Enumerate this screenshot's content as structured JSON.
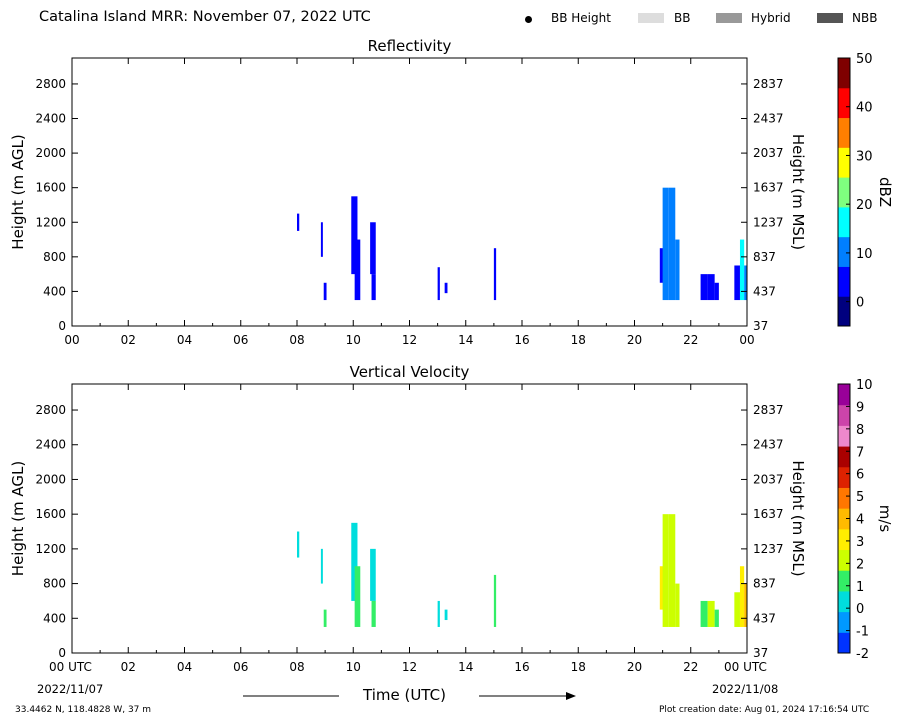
{
  "header": {
    "title": "Catalina Island MRR:  November 07, 2022 UTC",
    "legend": [
      {
        "label": "BB Height",
        "kind": "dot",
        "color": "#000000"
      },
      {
        "label": "BB",
        "kind": "swatch",
        "color": "#dddddd"
      },
      {
        "label": "Hybrid",
        "kind": "swatch",
        "color": "#999999"
      },
      {
        "label": "NBB",
        "kind": "swatch",
        "color": "#555555"
      }
    ]
  },
  "footer": {
    "location": "33.4462 N, 118.4828 W, 37 m",
    "creation": "Plot creation date: Aug 01, 2024 17:16:54 UTC",
    "xlabel": "Time (UTC)",
    "start_date": "2022/11/07",
    "end_date": "2022/11/08"
  },
  "chart_data": [
    {
      "type": "heatmap",
      "title": "Reflectivity",
      "ylabel": "Height (m AGL)",
      "ylabel_right": "Height (m MSL)",
      "xlim": [
        0,
        24
      ],
      "ylim": [
        0,
        3100
      ],
      "xticks": [
        "00",
        "02",
        "04",
        "06",
        "08",
        "10",
        "12",
        "14",
        "16",
        "18",
        "20",
        "22",
        "00"
      ],
      "yticks_left": [
        0,
        400,
        800,
        1200,
        1600,
        2000,
        2400,
        2800
      ],
      "yticks_right": [
        "37",
        "437",
        "837",
        "1237",
        "1637",
        "2037",
        "2437",
        "2837"
      ],
      "colorbar": {
        "label": "dBZ",
        "min": -5,
        "max": 50,
        "ticks": [
          0,
          10,
          20,
          30,
          40,
          50
        ],
        "colors": [
          "#00007f",
          "#0000ff",
          "#007fff",
          "#00ffff",
          "#7fff7f",
          "#ffff00",
          "#ff7f00",
          "#ff0000",
          "#7f0000"
        ]
      },
      "cells": [
        {
          "t0": 8.0,
          "t1": 8.08,
          "h0": 1100,
          "h1": 1300,
          "v": 2
        },
        {
          "t0": 8.85,
          "t1": 8.92,
          "h0": 800,
          "h1": 1200,
          "v": 2
        },
        {
          "t0": 8.95,
          "t1": 9.05,
          "h0": 300,
          "h1": 500,
          "v": 2
        },
        {
          "t0": 9.93,
          "t1": 10.15,
          "h0": 600,
          "h1": 1500,
          "v": 3
        },
        {
          "t0": 10.05,
          "t1": 10.25,
          "h0": 300,
          "h1": 1000,
          "v": 3
        },
        {
          "t0": 10.6,
          "t1": 10.8,
          "h0": 600,
          "h1": 1200,
          "v": 3
        },
        {
          "t0": 10.65,
          "t1": 10.8,
          "h0": 300,
          "h1": 600,
          "v": 3
        },
        {
          "t0": 13.0,
          "t1": 13.08,
          "h0": 300,
          "h1": 680,
          "v": 2
        },
        {
          "t0": 13.25,
          "t1": 13.35,
          "h0": 380,
          "h1": 500,
          "v": 2
        },
        {
          "t0": 15.0,
          "t1": 15.08,
          "h0": 300,
          "h1": 900,
          "v": 2
        },
        {
          "t0": 20.9,
          "t1": 21.05,
          "h0": 500,
          "h1": 900,
          "v": 6
        },
        {
          "t0": 21.0,
          "t1": 21.2,
          "h0": 300,
          "h1": 1600,
          "v": 9
        },
        {
          "t0": 21.2,
          "t1": 21.45,
          "h0": 300,
          "h1": 1600,
          "v": 10
        },
        {
          "t0": 21.45,
          "t1": 21.6,
          "h0": 300,
          "h1": 1000,
          "v": 11
        },
        {
          "t0": 22.35,
          "t1": 22.6,
          "h0": 300,
          "h1": 600,
          "v": 3
        },
        {
          "t0": 22.6,
          "t1": 22.85,
          "h0": 300,
          "h1": 600,
          "v": 4
        },
        {
          "t0": 22.85,
          "t1": 23.0,
          "h0": 300,
          "h1": 500,
          "v": 3
        },
        {
          "t0": 23.55,
          "t1": 23.75,
          "h0": 300,
          "h1": 700,
          "v": 4
        },
        {
          "t0": 23.75,
          "t1": 23.9,
          "h0": 300,
          "h1": 1000,
          "v": 14
        },
        {
          "t0": 23.9,
          "t1": 24.0,
          "h0": 300,
          "h1": 700,
          "v": 9
        }
      ]
    },
    {
      "type": "heatmap",
      "title": "Vertical Velocity",
      "ylabel": "Height (m AGL)",
      "ylabel_right": "Height (m MSL)",
      "xlim": [
        0,
        24
      ],
      "ylim": [
        0,
        3100
      ],
      "xticks": [
        "00 UTC",
        "02",
        "04",
        "06",
        "08",
        "10",
        "12",
        "14",
        "16",
        "18",
        "20",
        "22",
        "00 UTC"
      ],
      "yticks_left": [
        0,
        400,
        800,
        1200,
        1600,
        2000,
        2400,
        2800
      ],
      "yticks_right": [
        "37",
        "437",
        "837",
        "1237",
        "1637",
        "2037",
        "2437",
        "2837"
      ],
      "colorbar": {
        "label": "m/s",
        "min": -2,
        "max": 10,
        "ticks": [
          -2,
          -1,
          0,
          1,
          2,
          3,
          4,
          5,
          6,
          7,
          8,
          9,
          10
        ],
        "colors": [
          "#0033ff",
          "#0099ff",
          "#00dddd",
          "#33ee66",
          "#ccff00",
          "#ffee00",
          "#ffbb00",
          "#ff7700",
          "#dd2200",
          "#aa0000",
          "#ee88cc",
          "#cc44aa",
          "#990099"
        ]
      },
      "cells": [
        {
          "t0": 8.0,
          "t1": 8.08,
          "h0": 1100,
          "h1": 1400,
          "v": 0.5
        },
        {
          "t0": 8.85,
          "t1": 8.92,
          "h0": 800,
          "h1": 1200,
          "v": 0.5
        },
        {
          "t0": 8.95,
          "t1": 9.05,
          "h0": 300,
          "h1": 500,
          "v": 0.8
        },
        {
          "t0": 9.93,
          "t1": 10.15,
          "h0": 600,
          "h1": 1500,
          "v": 0.5
        },
        {
          "t0": 10.05,
          "t1": 10.25,
          "h0": 300,
          "h1": 1000,
          "v": 1.0
        },
        {
          "t0": 10.6,
          "t1": 10.8,
          "h0": 600,
          "h1": 1200,
          "v": 0.6
        },
        {
          "t0": 10.65,
          "t1": 10.8,
          "h0": 300,
          "h1": 600,
          "v": 1.0
        },
        {
          "t0": 13.0,
          "t1": 13.08,
          "h0": 300,
          "h1": 600,
          "v": 0.3
        },
        {
          "t0": 13.25,
          "t1": 13.35,
          "h0": 380,
          "h1": 500,
          "v": 0.3
        },
        {
          "t0": 15.0,
          "t1": 15.08,
          "h0": 300,
          "h1": 900,
          "v": 1.0
        },
        {
          "t0": 20.9,
          "t1": 21.05,
          "h0": 500,
          "h1": 1000,
          "v": 3.0
        },
        {
          "t0": 21.0,
          "t1": 21.2,
          "h0": 300,
          "h1": 1600,
          "v": 2.2
        },
        {
          "t0": 21.2,
          "t1": 21.45,
          "h0": 300,
          "h1": 1600,
          "v": 1.8
        },
        {
          "t0": 21.45,
          "t1": 21.6,
          "h0": 300,
          "h1": 800,
          "v": 2.0
        },
        {
          "t0": 22.35,
          "t1": 22.6,
          "h0": 300,
          "h1": 600,
          "v": 1.3
        },
        {
          "t0": 22.6,
          "t1": 22.85,
          "h0": 300,
          "h1": 600,
          "v": 1.8
        },
        {
          "t0": 22.85,
          "t1": 23.0,
          "h0": 300,
          "h1": 500,
          "v": 1.2
        },
        {
          "t0": 23.55,
          "t1": 23.75,
          "h0": 300,
          "h1": 700,
          "v": 1.8
        },
        {
          "t0": 23.75,
          "t1": 23.9,
          "h0": 300,
          "h1": 1000,
          "v": 3.0
        },
        {
          "t0": 23.9,
          "t1": 24.0,
          "h0": 300,
          "h1": 800,
          "v": 4.0
        }
      ]
    }
  ]
}
